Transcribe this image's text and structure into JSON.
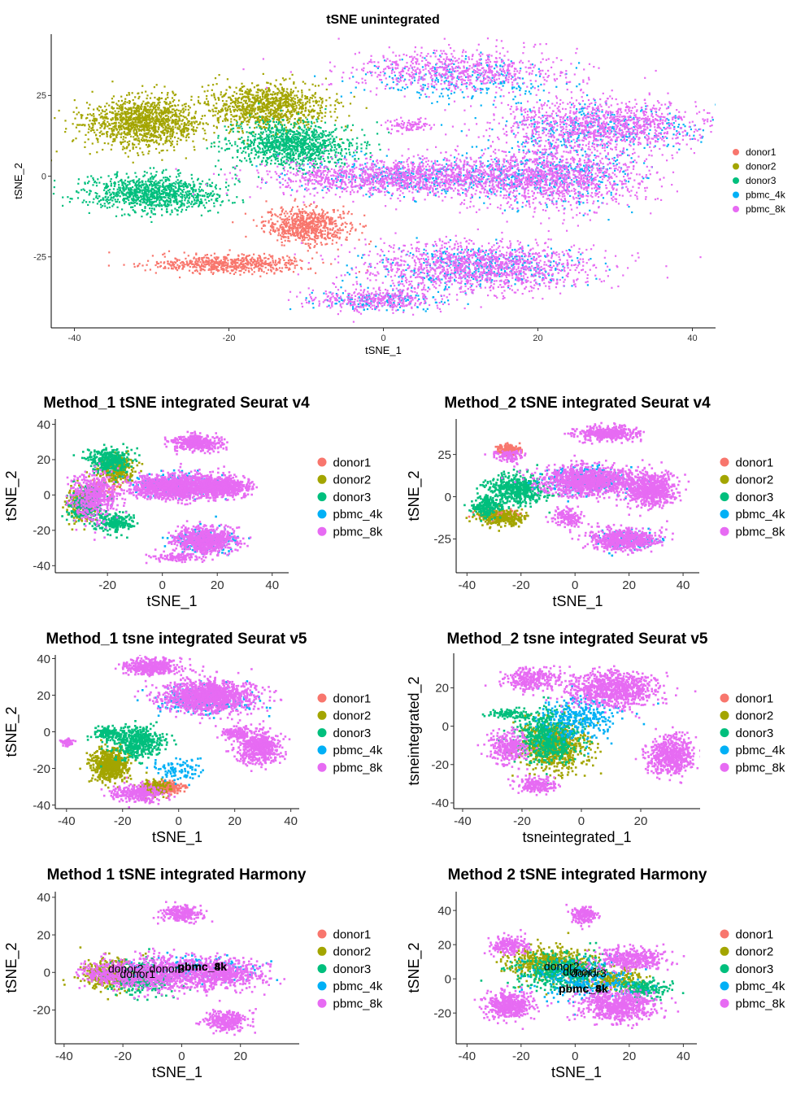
{
  "legend": {
    "colors": {
      "donor1": "#F8766D",
      "donor2": "#A3A500",
      "donor3": "#00BF7D",
      "pbmc_4k": "#00B0F6",
      "pbmc_8k": "#E76BF3"
    }
  },
  "chart_data": [
    {
      "id": "p0",
      "type": "scatter",
      "title": "tSNE unintegrated",
      "xlabel": "tSNE_1",
      "ylabel": "tSNE_2",
      "xlim": [
        -43,
        43
      ],
      "ylim": [
        -47,
        44
      ],
      "xticks": [
        -40,
        -20,
        0,
        20,
        40
      ],
      "yticks": [
        -25,
        0,
        25
      ],
      "legend": [
        "donor1",
        "donor2",
        "donor3",
        "pbmc_4k",
        "pbmc_8k"
      ],
      "legend_position": "right",
      "series": [
        {
          "name": "donor1",
          "clusters": [
            [
              -10,
              -15,
              5,
              5,
              700
            ],
            [
              -20,
              -27,
              9,
              2.5,
              600
            ]
          ]
        },
        {
          "name": "donor2",
          "clusters": [
            [
              -31,
              17,
              7,
              7,
              1300
            ],
            [
              -15,
              22,
              7,
              6,
              1000
            ]
          ]
        },
        {
          "name": "donor3",
          "clusters": [
            [
              -30,
              -5,
              8,
              5,
              1000
            ],
            [
              -12,
              10,
              7,
              6,
              1100
            ]
          ]
        },
        {
          "name": "pbmc_4k",
          "clusters": [
            [
              10,
              30,
              12,
              6,
              250
            ],
            [
              28,
              15,
              12,
              7,
              350
            ],
            [
              5,
              0,
              15,
              5,
              400
            ],
            [
              22,
              0,
              10,
              8,
              350
            ],
            [
              12,
              -28,
              12,
              6,
              400
            ],
            [
              -1,
              -38,
              8,
              3,
              150
            ]
          ]
        },
        {
          "name": "pbmc_8k",
          "clusters": [
            [
              10,
              33,
              14,
              6,
              700
            ],
            [
              28,
              16,
              12,
              7,
              1100
            ],
            [
              2,
              0,
              16,
              5,
              1300
            ],
            [
              22,
              0,
              11,
              9,
              1200
            ],
            [
              12,
              -28,
              14,
              7,
              1300
            ],
            [
              -1,
              -38,
              8,
              3,
              350
            ],
            [
              3,
              16,
              3,
              2,
              100
            ]
          ]
        }
      ]
    },
    {
      "id": "p1",
      "type": "scatter",
      "title": "Method_1 tSNE integrated Seurat v4",
      "xlabel": "tSNE_1",
      "ylabel": "tSNE_2",
      "xlim": [
        -39,
        46
      ],
      "ylim": [
        -44,
        43
      ],
      "xticks": [
        -20,
        0,
        20,
        40
      ],
      "yticks": [
        -40,
        -20,
        0,
        20,
        40
      ],
      "legend": [
        "donor1",
        "donor2",
        "donor3",
        "pbmc_4k",
        "pbmc_8k"
      ],
      "legend_position": "right",
      "series": [
        {
          "name": "donor1",
          "clusters": [
            [
              -22,
              5,
              6,
              5,
              60
            ]
          ]
        },
        {
          "name": "donor2",
          "clusters": [
            [
              -17,
              15,
              6,
              7,
              300
            ],
            [
              -30,
              -5,
              5,
              8,
              200
            ]
          ]
        },
        {
          "name": "donor3",
          "clusters": [
            [
              -20,
              20,
              7,
              6,
              350
            ],
            [
              -28,
              -5,
              6,
              9,
              300
            ],
            [
              -18,
              -15,
              6,
              5,
              200
            ]
          ]
        },
        {
          "name": "pbmc_4k",
          "clusters": [
            [
              5,
              6,
              14,
              6,
              250
            ],
            [
              15,
              -25,
              10,
              6,
              200
            ]
          ]
        },
        {
          "name": "pbmc_8k",
          "clusters": [
            [
              12,
              30,
              8,
              4,
              400
            ],
            [
              5,
              5,
              15,
              6,
              1300
            ],
            [
              22,
              5,
              8,
              5,
              600
            ],
            [
              15,
              -25,
              10,
              7,
              700
            ],
            [
              -25,
              0,
              8,
              12,
              500
            ],
            [
              5,
              -35,
              8,
              2,
              100
            ]
          ]
        }
      ]
    },
    {
      "id": "p2",
      "type": "scatter",
      "title": "Method_2 tSNE integrated Seurat v4",
      "xlabel": "tSNE_1",
      "ylabel": "tSNE_2",
      "xlim": [
        -44,
        46
      ],
      "ylim": [
        -45,
        46
      ],
      "xticks": [
        -40,
        -20,
        0,
        20,
        40
      ],
      "yticks": [
        -25,
        0,
        25
      ],
      "legend": [
        "donor1",
        "donor2",
        "donor3",
        "pbmc_4k",
        "pbmc_8k"
      ],
      "legend_position": "right",
      "series": [
        {
          "name": "donor1",
          "clusters": [
            [
              -25,
              28,
              4,
              3,
              200
            ],
            [
              -28,
              -10,
              8,
              3,
              100
            ]
          ]
        },
        {
          "name": "donor2",
          "clusters": [
            [
              -28,
              -12,
              8,
              4,
              300
            ]
          ]
        },
        {
          "name": "donor3",
          "clusters": [
            [
              -22,
              5,
              10,
              8,
              500
            ],
            [
              -33,
              -5,
              5,
              6,
              200
            ]
          ]
        },
        {
          "name": "pbmc_4k",
          "clusters": [
            [
              5,
              10,
              15,
              8,
              250
            ],
            [
              20,
              -25,
              10,
              5,
              150
            ]
          ]
        },
        {
          "name": "pbmc_8k",
          "clusters": [
            [
              12,
              38,
              10,
              4,
              400
            ],
            [
              5,
              10,
              16,
              8,
              1100
            ],
            [
              28,
              5,
              8,
              9,
              700
            ],
            [
              18,
              -25,
              12,
              6,
              600
            ],
            [
              -3,
              -12,
              5,
              5,
              150
            ],
            [
              -25,
              25,
              5,
              4,
              100
            ]
          ]
        }
      ]
    },
    {
      "id": "p3",
      "type": "scatter",
      "title": "Method_1 tsne integrated Seurat v5",
      "xlabel": "tSNE_1",
      "ylabel": "tSNE_2",
      "xlim": [
        -44,
        43
      ],
      "ylim": [
        -42,
        42
      ],
      "xticks": [
        -40,
        -20,
        0,
        20,
        40
      ],
      "yticks": [
        -40,
        -20,
        0,
        20,
        40
      ],
      "legend": [
        "donor1",
        "donor2",
        "donor3",
        "pbmc_4k",
        "pbmc_8k"
      ],
      "legend_position": "right",
      "series": [
        {
          "name": "donor1",
          "clusters": [
            [
              -5,
              -30,
              5,
              3,
              250
            ]
          ]
        },
        {
          "name": "donor2",
          "clusters": [
            [
              -25,
              -18,
              6,
              8,
              600
            ],
            [
              -10,
              -30,
              5,
              4,
              150
            ]
          ]
        },
        {
          "name": "donor3",
          "clusters": [
            [
              -15,
              -5,
              9,
              8,
              500
            ],
            [
              -26,
              0,
              4,
              3,
              100
            ]
          ]
        },
        {
          "name": "pbmc_4k",
          "clusters": [
            [
              8,
              18,
              15,
              7,
              250
            ],
            [
              0,
              -20,
              8,
              5,
              100
            ]
          ]
        },
        {
          "name": "pbmc_8k",
          "clusters": [
            [
              -10,
              36,
              9,
              4,
              400
            ],
            [
              10,
              20,
              15,
              8,
              1300
            ],
            [
              28,
              -8,
              7,
              8,
              600
            ],
            [
              -15,
              -33,
              8,
              4,
              300
            ],
            [
              20,
              0,
              4,
              3,
              150
            ],
            [
              -40,
              -5,
              2,
              2,
              60
            ]
          ]
        }
      ]
    },
    {
      "id": "p4",
      "type": "scatter",
      "title": "Method_2 tsne integrated Seurat v5",
      "xlabel": "tsneintegrated_1",
      "ylabel": "tsneintegrated_2",
      "xlim": [
        -43,
        40
      ],
      "ylim": [
        -43,
        38
      ],
      "xticks": [
        -40,
        -20,
        0,
        20
      ],
      "yticks": [
        -40,
        -20,
        0,
        20
      ],
      "legend": [
        "donor1",
        "donor2",
        "donor3",
        "pbmc_4k",
        "pbmc_8k"
      ],
      "legend_position": "right",
      "series": [
        {
          "name": "donor1",
          "clusters": [
            [
              -8,
              -5,
              4,
              4,
              60
            ]
          ]
        },
        {
          "name": "donor2",
          "clusters": [
            [
              -10,
              -10,
              10,
              12,
              700
            ]
          ]
        },
        {
          "name": "donor3",
          "clusters": [
            [
              -12,
              -5,
              10,
              12,
              600
            ],
            [
              -25,
              7,
              6,
              2,
              100
            ]
          ]
        },
        {
          "name": "pbmc_4k",
          "clusters": [
            [
              0,
              5,
              12,
              10,
              300
            ]
          ]
        },
        {
          "name": "pbmc_8k",
          "clusters": [
            [
              -17,
              25,
              8,
              5,
              300
            ],
            [
              10,
              20,
              14,
              8,
              900
            ],
            [
              30,
              -15,
              7,
              9,
              600
            ],
            [
              -25,
              -10,
              6,
              8,
              300
            ],
            [
              -15,
              -30,
              6,
              4,
              200
            ]
          ]
        }
      ]
    },
    {
      "id": "p5",
      "type": "scatter",
      "title": "Method 1 tSNE integrated Harmony",
      "xlabel": "tSNE_1",
      "ylabel": "tSNE_2",
      "xlim": [
        -43,
        40
      ],
      "ylim": [
        -38,
        43
      ],
      "xticks": [
        -40,
        -20,
        0,
        20
      ],
      "yticks": [
        -20,
        0,
        20,
        40
      ],
      "legend": [
        "donor1",
        "donor2",
        "donor3",
        "pbmc_4k",
        "pbmc_8k"
      ],
      "legend_position": "right",
      "annotations": [
        {
          "text": "donor2",
          "x": -19,
          "y": 0
        },
        {
          "text": "donor1",
          "x": -15,
          "y": -3
        },
        {
          "text": "donor3",
          "x": -5,
          "y": 0
        },
        {
          "text": "pbmc_8k",
          "x": 7,
          "y": 1
        },
        {
          "text": "pbmc_4k",
          "x": 7,
          "y": 1
        }
      ],
      "series": [
        {
          "name": "donor1",
          "clusters": [
            [
              -15,
              0,
              5,
              4,
              60
            ]
          ]
        },
        {
          "name": "donor2",
          "clusters": [
            [
              -25,
              0,
              8,
              7,
              400
            ]
          ]
        },
        {
          "name": "donor3",
          "clusters": [
            [
              -15,
              -2,
              10,
              8,
              400
            ]
          ]
        },
        {
          "name": "pbmc_4k",
          "clusters": [
            [
              5,
              2,
              18,
              6,
              200
            ]
          ]
        },
        {
          "name": "pbmc_8k",
          "clusters": [
            [
              -8,
              0,
              12,
              8,
              600
            ],
            [
              12,
              0,
              14,
              7,
              700
            ],
            [
              0,
              32,
              6,
              4,
              250
            ],
            [
              15,
              -25,
              7,
              5,
              300
            ],
            [
              -25,
              0,
              8,
              6,
              300
            ]
          ]
        }
      ]
    },
    {
      "id": "p6",
      "type": "scatter",
      "title": "Method 2 tSNE integrated Harmony",
      "xlabel": "tSNE_1",
      "ylabel": "tSNE_2",
      "xlim": [
        -44,
        45
      ],
      "ylim": [
        -38,
        51
      ],
      "xticks": [
        -40,
        -20,
        0,
        20,
        40
      ],
      "yticks": [
        -20,
        0,
        20,
        40
      ],
      "legend": [
        "donor1",
        "donor2",
        "donor3",
        "pbmc_4k",
        "pbmc_8k"
      ],
      "legend_position": "right",
      "annotations": [
        {
          "text": "donor2",
          "x": -5,
          "y": 5
        },
        {
          "text": "donor1",
          "x": 2,
          "y": 2
        },
        {
          "text": "donor3",
          "x": 5,
          "y": 1
        },
        {
          "text": "pbmc_8k",
          "x": 3,
          "y": -8
        },
        {
          "text": "pbmc_4k",
          "x": 3,
          "y": -8
        }
      ],
      "series": [
        {
          "name": "donor1",
          "clusters": [
            [
              0,
              5,
              6,
              5,
              60
            ]
          ]
        },
        {
          "name": "donor2",
          "clusters": [
            [
              -10,
              10,
              14,
              8,
              500
            ],
            [
              15,
              0,
              10,
              6,
              200
            ]
          ]
        },
        {
          "name": "donor3",
          "clusters": [
            [
              -5,
              5,
              15,
              9,
              500
            ],
            [
              25,
              -5,
              8,
              5,
              200
            ]
          ]
        },
        {
          "name": "pbmc_4k",
          "clusters": [
            [
              5,
              0,
              18,
              10,
              250
            ]
          ]
        },
        {
          "name": "pbmc_8k",
          "clusters": [
            [
              -25,
              -15,
              8,
              7,
              500
            ],
            [
              15,
              -15,
              12,
              8,
              700
            ],
            [
              20,
              12,
              12,
              6,
              400
            ],
            [
              3,
              38,
              4,
              4,
              200
            ],
            [
              -25,
              20,
              6,
              5,
              200
            ]
          ]
        }
      ]
    }
  ]
}
